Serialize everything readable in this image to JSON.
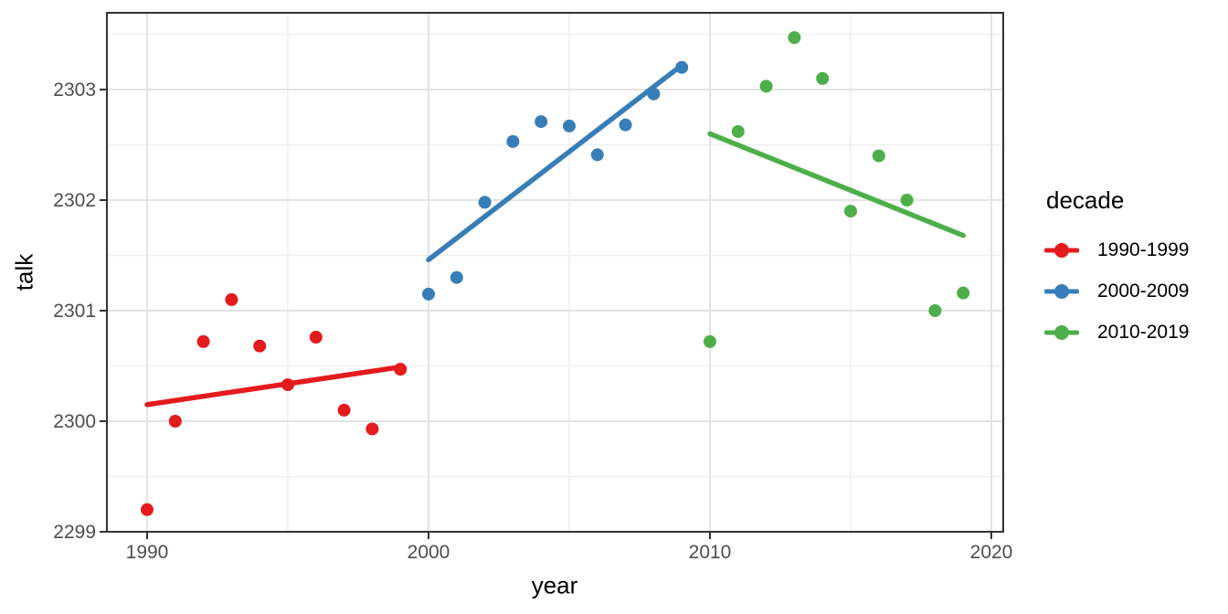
{
  "chart_data": {
    "type": "scatter",
    "title": "",
    "xlabel": "year",
    "ylabel": "talk",
    "x_ticks": [
      "1990",
      "2000",
      "2010",
      "2020"
    ],
    "x_tick_values": [
      1990,
      2000,
      2010,
      2020
    ],
    "x_minor": [
      1995,
      2005,
      2015
    ],
    "y_ticks": [
      "2299",
      "2300",
      "2301",
      "2302",
      "2303"
    ],
    "y_tick_values": [
      2299,
      2300,
      2301,
      2302,
      2303
    ],
    "y_minor": [
      2299.5,
      2300.5,
      2301.5,
      2302.5,
      2303.5
    ],
    "xlim": [
      1988.6,
      2020.4
    ],
    "ylim": [
      2299.0,
      2303.7
    ],
    "grid": true,
    "legend": {
      "title": "decade",
      "position": "right"
    },
    "colors": {
      "red": "#E41A1C",
      "blue": "#377EB8",
      "green": "#4DAF4A",
      "grid_major": "#E4E4E4",
      "grid_minor": "#EFEFEF",
      "panel_border": "#333333",
      "tick_mark": "#333333",
      "tick_label": "#4D4D4D"
    },
    "series": [
      {
        "name": "1990-1999",
        "color": "#E41A1C",
        "x": [
          1990,
          1991,
          1992,
          1993,
          1994,
          1995,
          1996,
          1997,
          1998,
          1999
        ],
        "y": [
          2299.2,
          2300.0,
          2300.72,
          2301.1,
          2300.68,
          2300.33,
          2300.76,
          2300.1,
          2299.93,
          2300.47
        ],
        "trend": {
          "x1": 1990,
          "y1": 2300.15,
          "x2": 1999,
          "y2": 2300.49
        }
      },
      {
        "name": "2000-2009",
        "color": "#377EB8",
        "x": [
          2000,
          2001,
          2002,
          2003,
          2004,
          2005,
          2006,
          2007,
          2008,
          2009
        ],
        "y": [
          2301.15,
          2301.3,
          2301.98,
          2302.53,
          2302.71,
          2302.67,
          2302.41,
          2302.68,
          2302.96,
          2303.2
        ],
        "trend": {
          "x1": 2000,
          "y1": 2301.46,
          "x2": 2009,
          "y2": 2303.22
        }
      },
      {
        "name": "2010-2019",
        "color": "#4DAF4A",
        "x": [
          2010,
          2011,
          2012,
          2013,
          2014,
          2015,
          2016,
          2017,
          2018,
          2019
        ],
        "y": [
          2300.72,
          2302.62,
          2303.03,
          2303.47,
          2303.1,
          2301.9,
          2302.4,
          2302.0,
          2301.0,
          2301.16
        ],
        "trend": {
          "x1": 2010,
          "y1": 2302.6,
          "x2": 2019,
          "y2": 2301.68
        }
      }
    ]
  }
}
